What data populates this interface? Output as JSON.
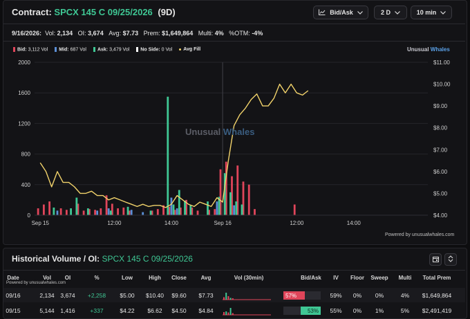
{
  "header": {
    "contract_label": "Contract:",
    "contract": "SPCX 145 C 09/25/2026",
    "dte": "(9D)",
    "controls": [
      {
        "label": "Bid/Ask",
        "icon": "line-chart-icon"
      },
      {
        "label": "2 D"
      },
      {
        "label": "10 min"
      }
    ]
  },
  "stats": {
    "date": "9/16/2026:",
    "vol_label": "Vol:",
    "vol": "2,134",
    "oi_label": "OI:",
    "oi": "3,674",
    "avg_label": "Avg:",
    "avg": "$7.73",
    "prem_label": "Prem:",
    "prem": "$1,649,864",
    "multi_label": "Multi:",
    "multi": "4%",
    "otm_label": "%OTM:",
    "otm": "-4%"
  },
  "legend": [
    {
      "label": "Bid:",
      "value": "3,112 Vol",
      "color": "#e0455a"
    },
    {
      "label": "Mid:",
      "value": "687 Vol",
      "color": "#5b8fd6"
    },
    {
      "label": "Ask:",
      "value": "3,479 Vol",
      "color": "#3fc794"
    },
    {
      "label": "No Side:",
      "value": "0 Vol",
      "color": "#ffffff"
    },
    {
      "label": "Avg Fill",
      "value": "",
      "color": "#f2d36b"
    }
  ],
  "brand": {
    "part1": "Unusual ",
    "part2": "Whales"
  },
  "watermark": {
    "part1": "Unusual ",
    "part2": "Whales"
  },
  "powered_by": "Powered by unusualwhales.com",
  "chart_data": {
    "type": "bar",
    "left_axis": {
      "ticks": [
        "2000",
        "1600",
        "1200",
        "800",
        "400",
        "0"
      ],
      "range": [
        0,
        2000
      ]
    },
    "right_axis": {
      "ticks": [
        "$11.00",
        "$10.00",
        "$9.00",
        "$8.00",
        "$7.00",
        "$6.00",
        "$5.00",
        "$4.00"
      ],
      "range": [
        4,
        11
      ]
    },
    "x_ticks": [
      "Sep 15",
      "12:00",
      "14:00",
      "Sep 16",
      "12:00",
      "14:00"
    ],
    "x_tick_pos": [
      0,
      13,
      23,
      32,
      45,
      55
    ],
    "x_range": [
      -1,
      68
    ],
    "session_divider": 32,
    "series": [
      {
        "name": "Bid",
        "color": "#e0455a",
        "points": [
          [
            0,
            90
          ],
          [
            1,
            140
          ],
          [
            2,
            180
          ],
          [
            4,
            90
          ],
          [
            5,
            70
          ],
          [
            7,
            150
          ],
          [
            8,
            60
          ],
          [
            9,
            80
          ],
          [
            10,
            70
          ],
          [
            11,
            90
          ],
          [
            12,
            260
          ],
          [
            13,
            150
          ],
          [
            14,
            90
          ],
          [
            15,
            100
          ],
          [
            16,
            60
          ],
          [
            20,
            60
          ],
          [
            21,
            80
          ],
          [
            22,
            130
          ],
          [
            23,
            110
          ],
          [
            24,
            70
          ],
          [
            25,
            100
          ],
          [
            26,
            200
          ],
          [
            27,
            100
          ],
          [
            28,
            60
          ],
          [
            30,
            70
          ],
          [
            31,
            80
          ],
          [
            32,
            600
          ],
          [
            33,
            700
          ],
          [
            34,
            510
          ],
          [
            35,
            650
          ],
          [
            36,
            440
          ],
          [
            37,
            400
          ],
          [
            38,
            80
          ],
          [
            45,
            140
          ]
        ]
      },
      {
        "name": "Mid",
        "color": "#5b8fd6",
        "points": [
          [
            3,
            60
          ],
          [
            10,
            60
          ],
          [
            12,
            90
          ],
          [
            16,
            70
          ],
          [
            18,
            40
          ],
          [
            23,
            230
          ],
          [
            24,
            90
          ],
          [
            31,
            180
          ],
          [
            34,
            130
          ]
        ]
      },
      {
        "name": "Ask",
        "color": "#3fc794",
        "points": [
          [
            2,
            100
          ],
          [
            5,
            90
          ],
          [
            6,
            230
          ],
          [
            8,
            90
          ],
          [
            12,
            60
          ],
          [
            15,
            110
          ],
          [
            19,
            60
          ],
          [
            22,
            1550
          ],
          [
            23,
            140
          ],
          [
            24,
            330
          ],
          [
            25,
            190
          ],
          [
            26,
            130
          ],
          [
            29,
            180
          ],
          [
            31,
            240
          ],
          [
            32,
            550
          ],
          [
            33,
            300
          ],
          [
            34,
            180
          ],
          [
            35,
            140
          ]
        ]
      }
    ],
    "avg_fill": [
      [
        0,
        6.4
      ],
      [
        1,
        6.0
      ],
      [
        2,
        5.3
      ],
      [
        3,
        6.0
      ],
      [
        4,
        5.5
      ],
      [
        5,
        5.5
      ],
      [
        6,
        5.3
      ],
      [
        7,
        5.0
      ],
      [
        8,
        5.0
      ],
      [
        9,
        5.1
      ],
      [
        10,
        4.9
      ],
      [
        11,
        4.9
      ],
      [
        12,
        4.7
      ],
      [
        13,
        4.8
      ],
      [
        14,
        4.7
      ],
      [
        15,
        4.6
      ],
      [
        16,
        4.5
      ],
      [
        17,
        4.4
      ],
      [
        18,
        4.5
      ],
      [
        19,
        4.4
      ],
      [
        20,
        4.45
      ],
      [
        21,
        4.45
      ],
      [
        22,
        4.35
      ],
      [
        23,
        4.5
      ],
      [
        24,
        4.9
      ],
      [
        25,
        4.7
      ],
      [
        26,
        4.5
      ],
      [
        27,
        4.4
      ],
      [
        28,
        4.6
      ],
      [
        29,
        4.5
      ],
      [
        30,
        4.4
      ],
      [
        31,
        4.8
      ],
      [
        32,
        4.6
      ],
      [
        33,
        6.5
      ],
      [
        34,
        8.1
      ],
      [
        35,
        8.6
      ],
      [
        36,
        8.9
      ],
      [
        37,
        9.3
      ],
      [
        38,
        9.55
      ],
      [
        39,
        9.0
      ],
      [
        40,
        9.0
      ],
      [
        41,
        9.35
      ],
      [
        42,
        10.0
      ],
      [
        43,
        9.6
      ],
      [
        44,
        10.0
      ],
      [
        45,
        9.6
      ],
      [
        46,
        9.5
      ],
      [
        47,
        9.7
      ]
    ]
  },
  "historical": {
    "title": "Historical Volume / OI:",
    "contract": "SPCX 145 C 09/25/2026",
    "powered_by": "Powered by unusualwhales.com",
    "columns": [
      "Date",
      "Vol",
      "OI",
      "%",
      "Low",
      "High",
      "Close",
      "Avg",
      "Vol (30min)",
      "Bid/Ask",
      "IV",
      "Floor",
      "Sweep",
      "Multi",
      "Total Prem"
    ],
    "rows": [
      {
        "date": "09/16",
        "vol": "2,134",
        "oi": "3,674",
        "pct": "+2,258",
        "low": "$5.00",
        "high": "$10.40",
        "close": "$9.60",
        "avg": "$7.73",
        "bidask": "57%",
        "bid_frac": 0.57,
        "iv": "59%",
        "floor": "0%",
        "sweep": "0%",
        "multi": "4%",
        "prem": "$1,649,864",
        "spark": [
          0.35,
          1,
          0.5,
          0.25,
          0.2
        ]
      },
      {
        "date": "09/15",
        "vol": "5,144",
        "oi": "1,416",
        "pct": "+337",
        "low": "$4.22",
        "high": "$6.62",
        "close": "$4.50",
        "avg": "$4.84",
        "bidask": "53%",
        "ask_frac": 0.53,
        "iv": "55%",
        "floor": "0%",
        "sweep": "1%",
        "multi": "5%",
        "prem": "$2,491,419",
        "spark": [
          0.4,
          0.5,
          0.35,
          1,
          0.25
        ]
      }
    ]
  }
}
